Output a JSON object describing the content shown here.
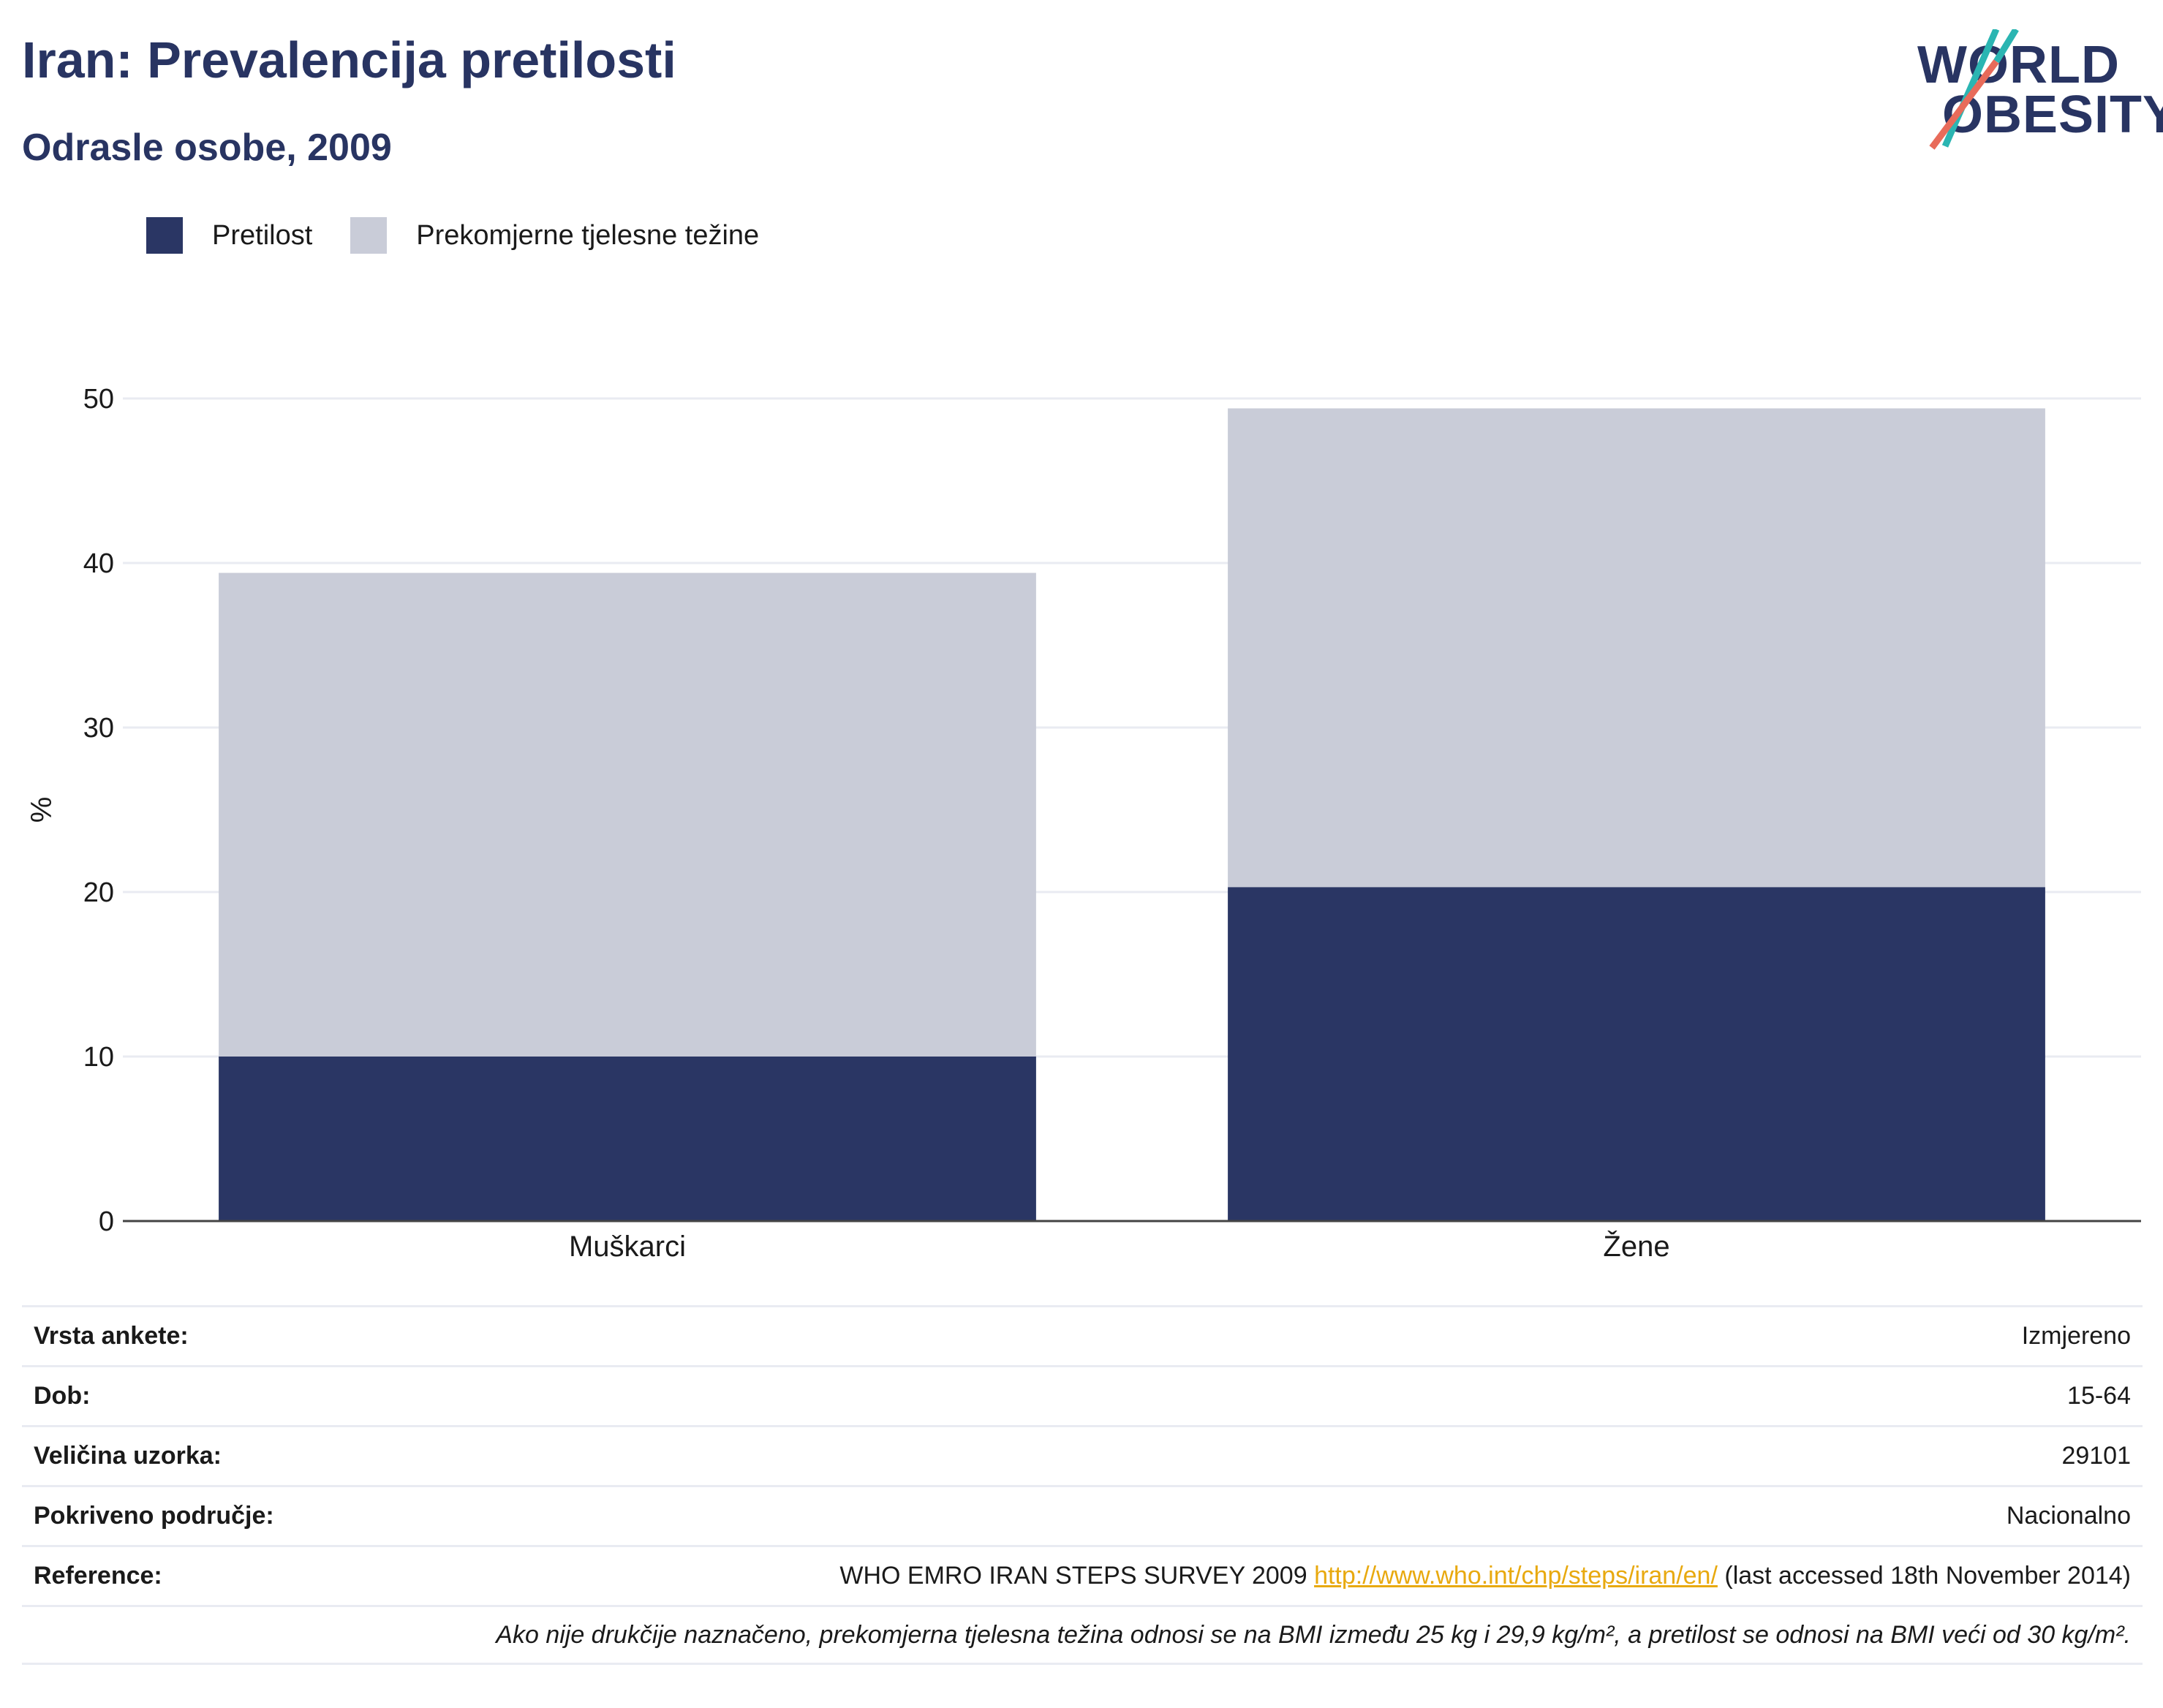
{
  "header": {
    "title": "Iran: Prevalencija pretilosti",
    "subtitle": "Odrasle osobe, 2009"
  },
  "logo": {
    "line1": "WORLD",
    "line2": "OBESITY"
  },
  "colors": {
    "obesity": "#2a3664",
    "overweight": "#c9ccd8",
    "brand": "#283462",
    "link": "#e8a90f"
  },
  "chart_data": {
    "type": "bar",
    "stacked": true,
    "categories": [
      "Muškarci",
      "Žene"
    ],
    "series": [
      {
        "name": "Pretilost",
        "values": [
          10.0,
          20.3
        ]
      },
      {
        "name": "Prekomjerne tjelesne težine",
        "values": [
          29.4,
          29.1
        ]
      }
    ],
    "ylabel": "%",
    "ylim": [
      0,
      50
    ],
    "yticks": [
      "0",
      "10",
      "20",
      "30",
      "40",
      "50"
    ],
    "grid": true,
    "legend": "top-left"
  },
  "meta": {
    "rows": [
      {
        "label": "Vrsta ankete:",
        "value": "Izmjereno"
      },
      {
        "label": "Dob:",
        "value": "15-64"
      },
      {
        "label": "Veličina uzorka:",
        "value": "29101"
      },
      {
        "label": "Pokriveno područje:",
        "value": "Nacionalno"
      }
    ],
    "reference": {
      "label": "Reference:",
      "prefix": "WHO EMRO IRAN STEPS SURVEY 2009",
      "link": "http://www.who.int/chp/steps/iran/en/",
      "suffix": "(last accessed 18th November 2014)"
    },
    "note": "Ako nije drukčije naznačeno, prekomjerna tjelesna težina odnosi se na BMI između 25 kg i 29,9 kg/m², a pretilost se odnosi na BMI veći od 30 kg/m²."
  }
}
